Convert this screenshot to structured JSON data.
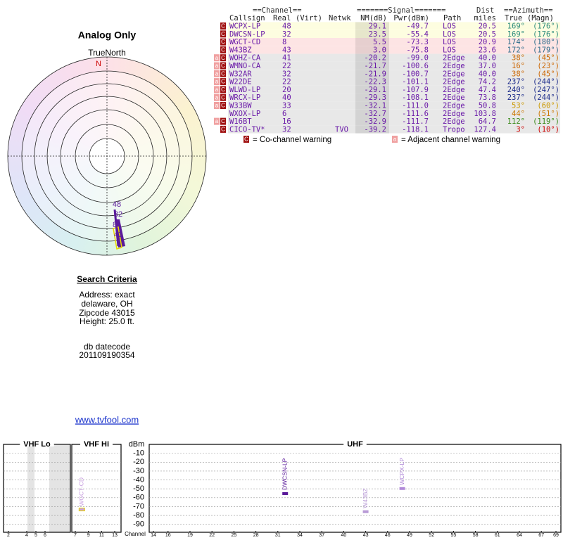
{
  "radar": {
    "title": "Analog Only",
    "north_label": "TrueNorth",
    "north_mark": "N",
    "markers": [
      "48",
      "32",
      "8",
      "43"
    ]
  },
  "table": {
    "groups": [
      "==Channel==",
      "=======Signal=======",
      "Dist",
      "==Azimuth=="
    ],
    "columns": [
      "Callsign",
      "Real",
      "(Virt)",
      "Netwk",
      "NM(dB)",
      "Pwr(dBm)",
      "Path",
      "miles",
      "True",
      "(Magn)"
    ],
    "rows": [
      {
        "flags": [
          "C"
        ],
        "callsign": "WCPX-LP",
        "real": "48",
        "nm": "29.1",
        "pwr": "-49.7",
        "path": "LOS",
        "dist": "20.5",
        "true": "169°",
        "magn": "(176°)",
        "bg": "#fdfde0",
        "color": "#2a8a7a"
      },
      {
        "flags": [
          "C"
        ],
        "callsign": "DWCSN-LP",
        "real": "32",
        "nm": "23.5",
        "pwr": "-55.4",
        "path": "LOS",
        "dist": "20.5",
        "true": "169°",
        "magn": "(176°)",
        "bg": "#fdfde0",
        "color": "#2a8a7a"
      },
      {
        "flags": [
          "C"
        ],
        "callsign": "WGCT-CD",
        "real": "8",
        "nm": "5.5",
        "pwr": "-73.3",
        "path": "LOS",
        "dist": "20.9",
        "true": "174°",
        "magn": "(180°)",
        "bg": "#fde4e4",
        "color": "#2a6a8a"
      },
      {
        "flags": [
          "C"
        ],
        "callsign": "W43BZ",
        "real": "43",
        "nm": "3.0",
        "pwr": "-75.8",
        "path": "LOS",
        "dist": "23.6",
        "true": "172°",
        "magn": "(179°)",
        "bg": "#fde4e4",
        "color": "#2a6a8a"
      },
      {
        "flags": [
          "a",
          "C"
        ],
        "callsign": "WOHZ-CA",
        "real": "41",
        "nm": "-20.2",
        "pwr": "-99.0",
        "path": "2Edge",
        "dist": "40.0",
        "true": "38°",
        "magn": "(45°)",
        "bg": "#e8e8e8",
        "color": "#cc6600"
      },
      {
        "flags": [
          "a",
          "C"
        ],
        "callsign": "WMNO-CA",
        "real": "22",
        "nm": "-21.7",
        "pwr": "-100.6",
        "path": "2Edge",
        "dist": "37.0",
        "true": "16°",
        "magn": "(23°)",
        "bg": "#e8e8e8",
        "color": "#cc6600"
      },
      {
        "flags": [
          "a",
          "C"
        ],
        "callsign": "W32AR",
        "real": "32",
        "nm": "-21.9",
        "pwr": "-100.7",
        "path": "2Edge",
        "dist": "40.0",
        "true": "38°",
        "magn": "(45°)",
        "bg": "#e8e8e8",
        "color": "#cc6600"
      },
      {
        "flags": [
          "a",
          "C"
        ],
        "callsign": "W22DE",
        "real": "22",
        "nm": "-22.3",
        "pwr": "-101.1",
        "path": "2Edge",
        "dist": "74.2",
        "true": "237°",
        "magn": "(244°)",
        "bg": "#e8e8e8",
        "color": "#1a2a8a"
      },
      {
        "flags": [
          "a",
          "C"
        ],
        "callsign": "WLWD-LP",
        "real": "20",
        "nm": "-29.1",
        "pwr": "-107.9",
        "path": "2Edge",
        "dist": "47.4",
        "true": "240°",
        "magn": "(247°)",
        "bg": "#e8e8e8",
        "color": "#1a2a8a"
      },
      {
        "flags": [
          "a",
          "C"
        ],
        "callsign": "WRCX-LP",
        "real": "40",
        "nm": "-29.3",
        "pwr": "-108.1",
        "path": "2Edge",
        "dist": "73.8",
        "true": "237°",
        "magn": "(244°)",
        "bg": "#e8e8e8",
        "color": "#1a2a8a"
      },
      {
        "flags": [
          "a",
          "C"
        ],
        "callsign": "W33BW",
        "real": "33",
        "nm": "-32.1",
        "pwr": "-111.0",
        "path": "2Edge",
        "dist": "50.8",
        "true": "53°",
        "magn": "(60°)",
        "bg": "#e8e8e8",
        "color": "#cc9900"
      },
      {
        "callsign": "WXOX-LP",
        "real": "6",
        "nm": "-32.7",
        "pwr": "-111.6",
        "path": "2Edge",
        "dist": "103.8",
        "true": "44°",
        "magn": "(51°)",
        "bg": "#e8e8e8",
        "color": "#cc7700"
      },
      {
        "flags": [
          "a",
          "C"
        ],
        "callsign": "W16BT",
        "real": "16",
        "nm": "-32.9",
        "pwr": "-111.7",
        "path": "2Edge",
        "dist": "64.7",
        "true": "112°",
        "magn": "(119°)",
        "bg": "#e8e8e8",
        "color": "#3a8a1a"
      },
      {
        "flags": [
          "C"
        ],
        "callsign": "CICO-TV*",
        "real": "32",
        "netwk": "TVO",
        "nm": "-39.2",
        "pwr": "-118.1",
        "path": "Tropo",
        "dist": "127.4",
        "true": "3°",
        "magn": "(10°)",
        "bg": "#e8e8e8",
        "color": "#cc0000"
      }
    ]
  },
  "legend": [
    {
      "icon": "C",
      "text": "= Co-channel warning"
    },
    {
      "icon": "a",
      "text": "= Adjacent channel warning"
    }
  ],
  "search": {
    "title": "Search Criteria",
    "lines": [
      "Address: exact",
      "delaware, OH",
      "Zipcode 43015",
      "Height: 25.0 ft."
    ],
    "db": [
      "db datecode",
      "201109190354"
    ],
    "link": "www.tvfool.com"
  },
  "spectrum_chart": {
    "type": "bar",
    "y_label": "dBm",
    "x_label": "Channel",
    "ylim": [
      -95,
      0
    ],
    "yticks": [
      -10,
      -20,
      -30,
      -40,
      -50,
      -60,
      -70,
      -80,
      -90
    ],
    "sections": [
      {
        "name": "VHF Lo",
        "xlim": [
          2,
          6
        ],
        "xticks": [
          2,
          4,
          5,
          6
        ]
      },
      {
        "name": "VHF Hi",
        "xlim": [
          7,
          13
        ],
        "xticks": [
          7,
          9,
          11,
          13
        ]
      },
      {
        "name": "UHF",
        "xlim": [
          14,
          69
        ],
        "xticks": [
          14,
          16,
          19,
          22,
          25,
          28,
          31,
          34,
          37,
          40,
          43,
          46,
          49,
          52,
          55,
          58,
          61,
          64,
          67,
          69
        ]
      }
    ],
    "stations": [
      {
        "name": "WGCT-CD",
        "channel": 8,
        "value": -73.3,
        "color": "#c9a0e0"
      },
      {
        "name": "DWCSN-LP",
        "channel": 32,
        "value": -55.4,
        "color": "#5a1a9a"
      },
      {
        "name": "W43BZ",
        "channel": 43,
        "value": -75.8,
        "color": "#b89ad6"
      },
      {
        "name": "WCPX-LP",
        "channel": 48,
        "value": -49.7,
        "color": "#b089d8"
      }
    ]
  }
}
